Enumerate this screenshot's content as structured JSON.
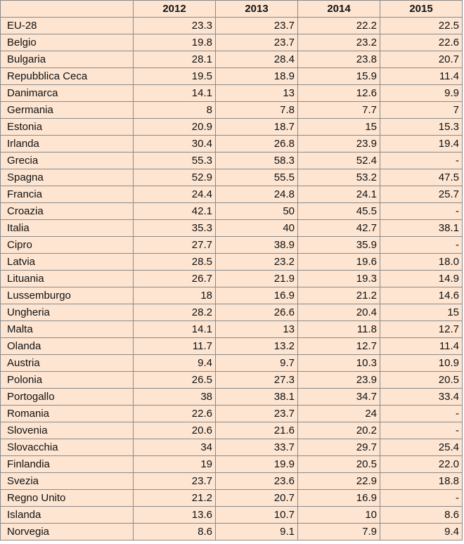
{
  "table": {
    "headers": [
      "",
      "2012",
      "2013",
      "2014",
      "2015"
    ],
    "rows": [
      [
        "EU-28",
        "23.3",
        "23.7",
        "22.2",
        "22.5"
      ],
      [
        "Belgio",
        "19.8",
        "23.7",
        "23.2",
        "22.6"
      ],
      [
        "Bulgaria",
        "28.1",
        "28.4",
        "23.8",
        "20.7"
      ],
      [
        "Repubblica Ceca",
        "19.5",
        "18.9",
        "15.9",
        "11.4"
      ],
      [
        "Danimarca",
        "14.1",
        "13",
        "12.6",
        "9.9"
      ],
      [
        "Germania",
        "8",
        "7.8",
        "7.7",
        "7"
      ],
      [
        "Estonia",
        "20.9",
        "18.7",
        "15",
        "15.3"
      ],
      [
        "Irlanda",
        "30.4",
        "26.8",
        "23.9",
        "19.4"
      ],
      [
        "Grecia",
        "55.3",
        "58.3",
        "52.4",
        "-"
      ],
      [
        "Spagna",
        "52.9",
        "55.5",
        "53.2",
        "47.5"
      ],
      [
        "Francia",
        "24.4",
        "24.8",
        "24.1",
        "25.7"
      ],
      [
        "Croazia",
        "42.1",
        "50",
        "45.5",
        "-"
      ],
      [
        "Italia",
        "35.3",
        "40",
        "42.7",
        "38.1"
      ],
      [
        "Cipro",
        "27.7",
        "38.9",
        "35.9",
        "-"
      ],
      [
        "Latvia",
        "28.5",
        "23.2",
        "19.6",
        "18.0"
      ],
      [
        "Lituania",
        "26.7",
        "21.9",
        "19.3",
        "14.9"
      ],
      [
        "Lussemburgo",
        "18",
        "16.9",
        "21.2",
        "14.6"
      ],
      [
        "Ungheria",
        "28.2",
        "26.6",
        "20.4",
        "15"
      ],
      [
        "Malta",
        "14.1",
        "13",
        "11.8",
        "12.7"
      ],
      [
        "Olanda",
        "11.7",
        "13.2",
        "12.7",
        "11.4"
      ],
      [
        "Austria",
        "9.4",
        "9.7",
        "10.3",
        "10.9"
      ],
      [
        "Polonia",
        "26.5",
        "27.3",
        "23.9",
        "20.5"
      ],
      [
        "Portogallo",
        "38",
        "38.1",
        "34.7",
        "33.4"
      ],
      [
        "Romania",
        "22.6",
        "23.7",
        "24",
        "-"
      ],
      [
        "Slovenia",
        "20.6",
        "21.6",
        "20.2",
        "-"
      ],
      [
        "Slovacchia",
        "34",
        "33.7",
        "29.7",
        "25.4"
      ],
      [
        "Finlandia",
        "19",
        "19.9",
        "20.5",
        "22.0"
      ],
      [
        "Svezia",
        "23.7",
        "23.6",
        "22.9",
        "18.8"
      ],
      [
        "Regno Unito",
        "21.2",
        "20.7",
        "16.9",
        "-"
      ],
      [
        "Islanda",
        "13.6",
        "10.7",
        "10",
        "8.6"
      ],
      [
        "Norvegia",
        "8.6",
        "9.1",
        "7.9",
        "9.4"
      ]
    ]
  },
  "colors": {
    "cell_background": "#fde5d2",
    "border": "#8a8a8a"
  }
}
